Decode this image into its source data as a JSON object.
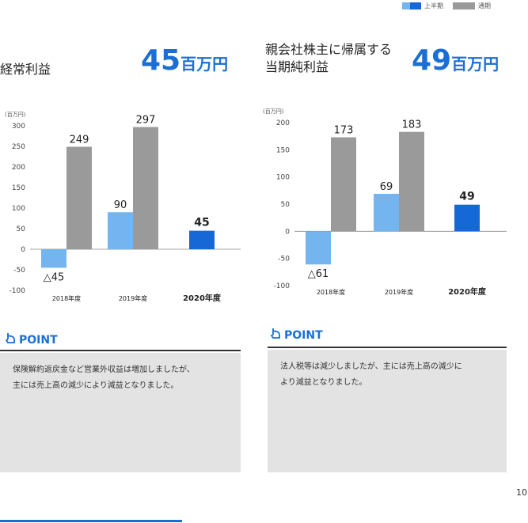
{
  "legend": [
    {
      "label": "上半期",
      "color_light": "#74b5f0",
      "color_dark": "#1668d6"
    },
    {
      "label": "通期",
      "color": "#9a9a9a"
    }
  ],
  "panels": [
    {
      "title_lines": [
        "経常利益"
      ],
      "big_value": "45",
      "big_unit": "百万円",
      "point_label": "POINT",
      "comment_lines": [
        "保険解約返戻金など営業外収益は増加しましたが、",
        "主には売上高の減少により減益となりました。"
      ]
    },
    {
      "title_lines": [
        "親会社株主に帰属する",
        "当期純利益"
      ],
      "big_value": "49",
      "big_unit": "百万円",
      "point_label": "POINT",
      "comment_lines": [
        "法人税等は減少しましたが、主には売上高の減少に",
        "より減益となりました。"
      ]
    }
  ],
  "chart_data": [
    {
      "type": "bar",
      "ylabel": "(百万円)",
      "ylim": [
        -100,
        300
      ],
      "yticks": [
        300,
        250,
        200,
        150,
        100,
        50,
        0,
        -50,
        -100
      ],
      "categories": [
        "2018年度",
        "2019年度",
        "2020年度"
      ],
      "series": [
        {
          "name": "上半期",
          "values": [
            -45,
            90,
            45
          ]
        },
        {
          "name": "通期",
          "values": [
            249,
            297,
            null
          ]
        }
      ],
      "value_labels": {
        "上半期": [
          "△45",
          "90",
          "45"
        ],
        "通期": [
          "249",
          "297",
          ""
        ]
      }
    },
    {
      "type": "bar",
      "ylabel": "(百万円)",
      "ylim": [
        -100,
        200
      ],
      "yticks": [
        200,
        150,
        100,
        50,
        0,
        -50,
        -100
      ],
      "categories": [
        "2018年度",
        "2019年度",
        "2020年度"
      ],
      "series": [
        {
          "name": "上半期",
          "values": [
            -61,
            69,
            49
          ]
        },
        {
          "name": "通期",
          "values": [
            173,
            183,
            null
          ]
        }
      ],
      "value_labels": {
        "上半期": [
          "△61",
          "69",
          "49"
        ],
        "通期": [
          "173",
          "183",
          ""
        ]
      }
    }
  ],
  "page_number": "10"
}
